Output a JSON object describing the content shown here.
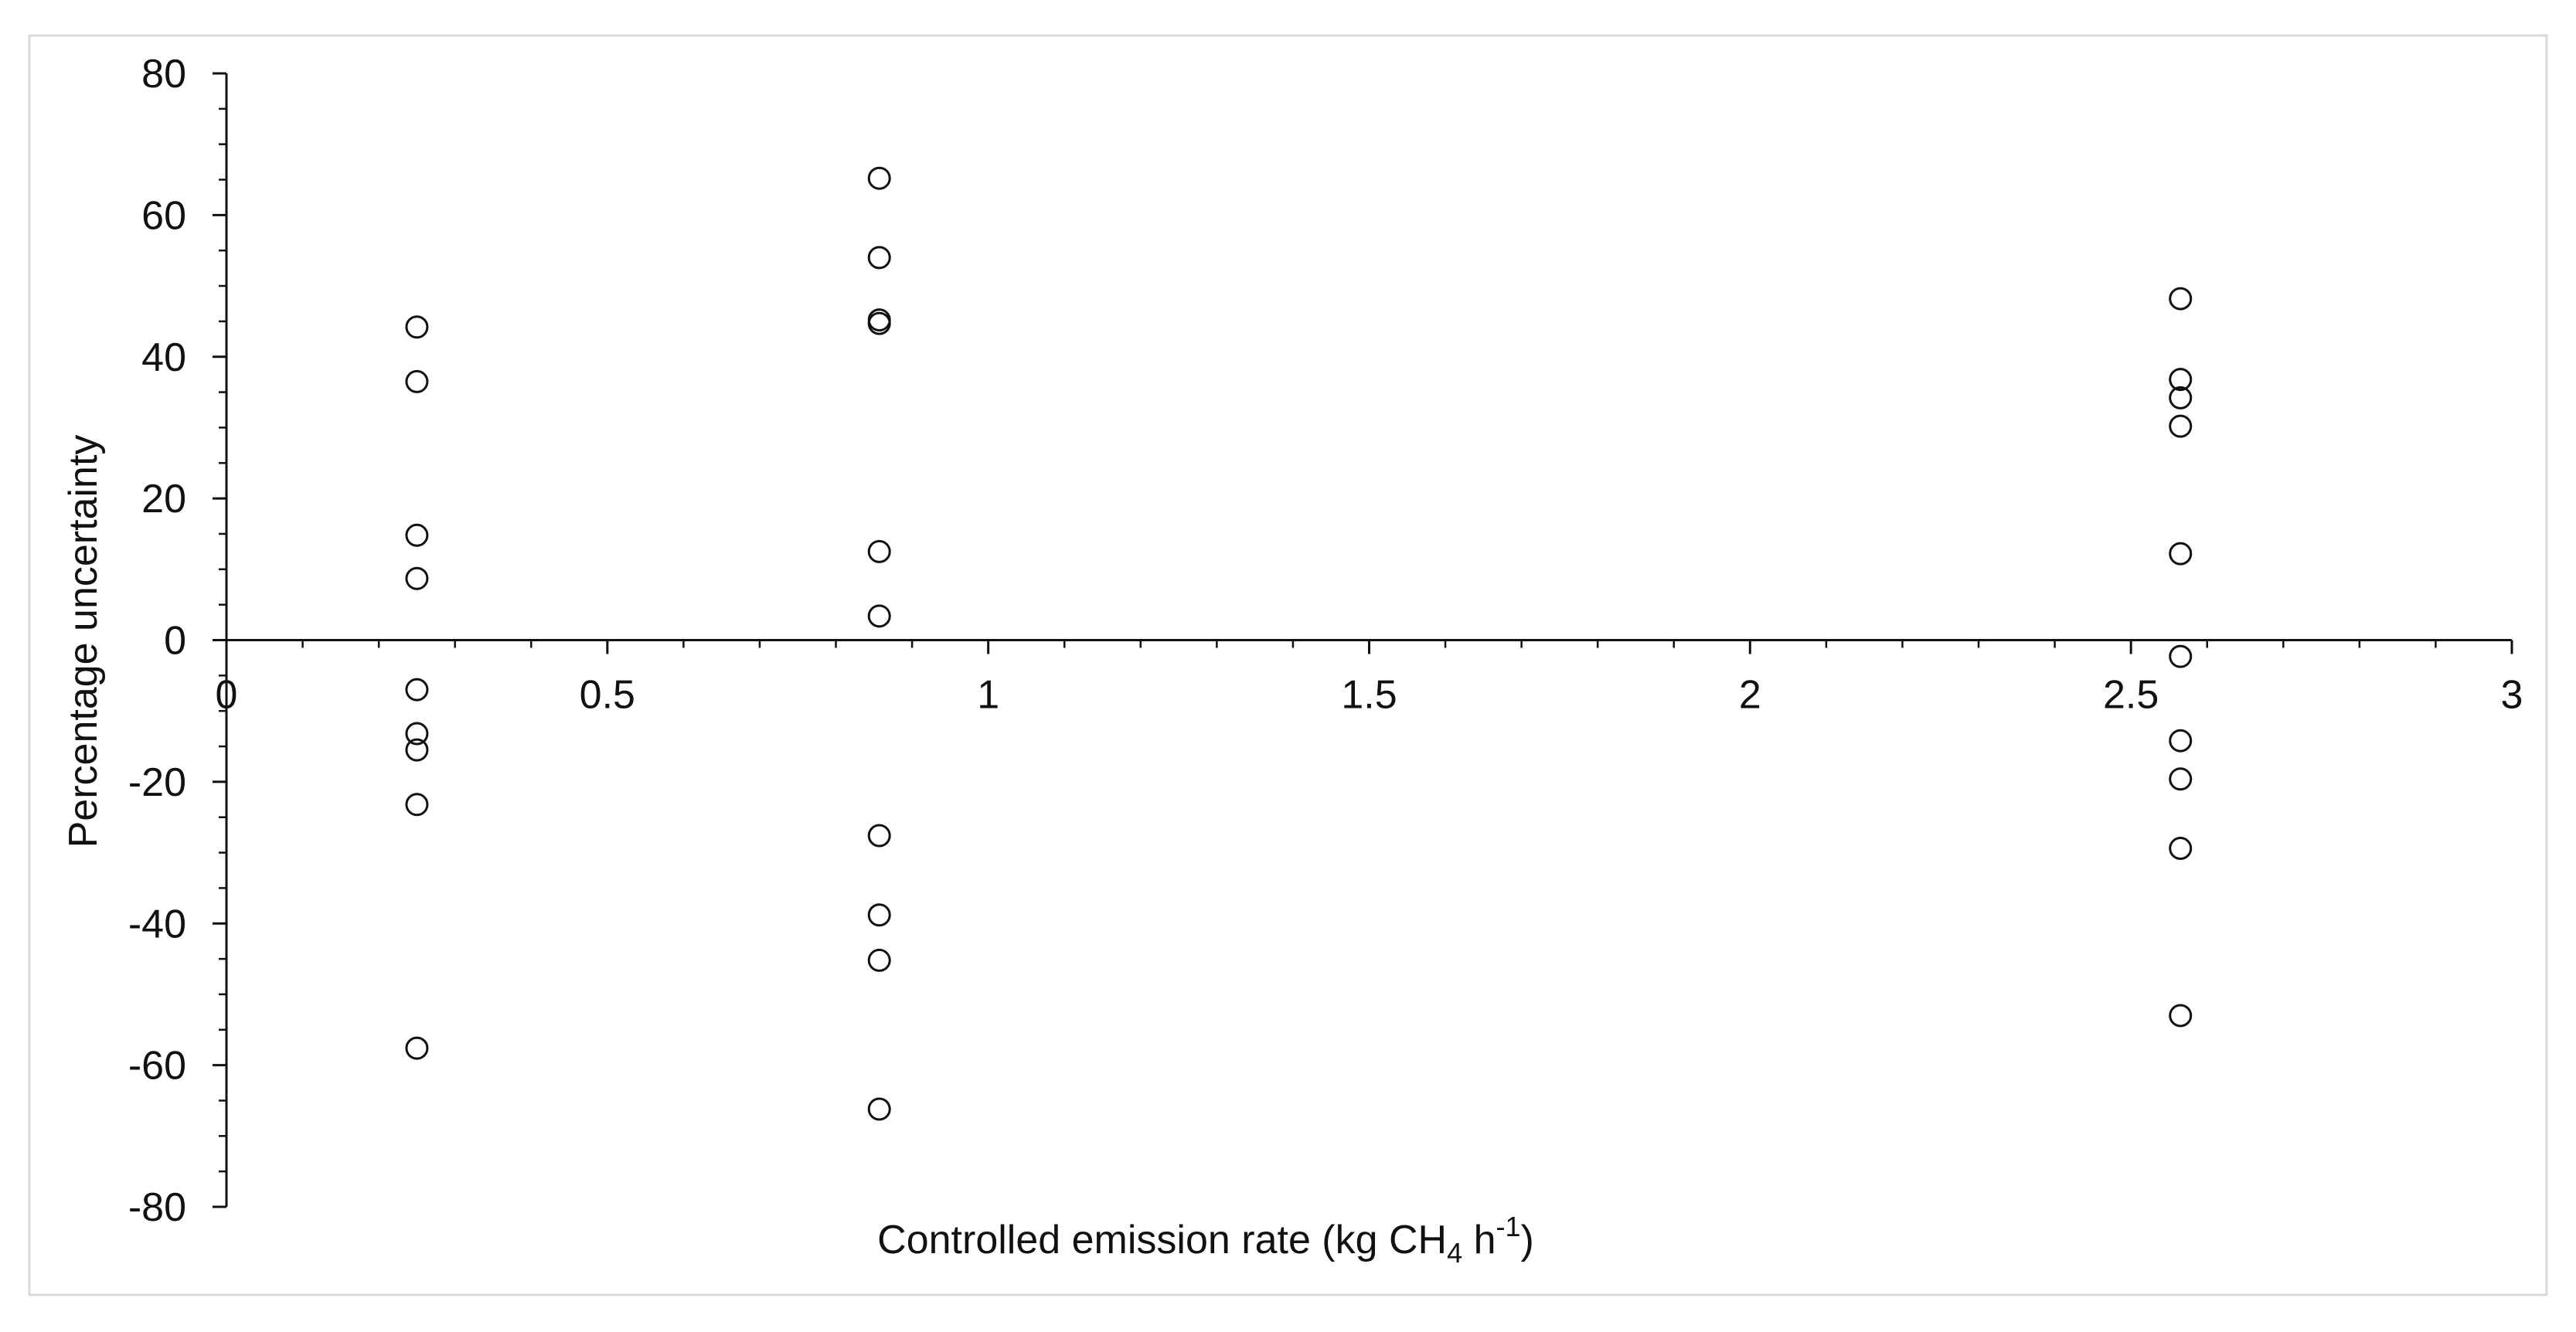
{
  "chart_data": {
    "type": "scatter",
    "title": "",
    "xlabel": {
      "prefix": "Controlled emission rate (kg CH",
      "subscript": "4",
      "middle": " h",
      "superscript": "-1",
      "suffix": ")"
    },
    "ylabel": "Percentage uncertainty",
    "xlim": [
      0,
      3
    ],
    "ylim": [
      -80,
      80
    ],
    "x_ticks": [
      0,
      0.5,
      1,
      1.5,
      2,
      2.5,
      3
    ],
    "x_tick_labels": [
      "0",
      "0.5",
      "1",
      "1.5",
      "2",
      "2.5",
      "3"
    ],
    "y_ticks": [
      -80,
      -60,
      -40,
      -20,
      0,
      20,
      40,
      60,
      80
    ],
    "y_tick_labels": [
      "-80",
      "-60",
      "-40",
      "-20",
      "0",
      "20",
      "40",
      "60",
      "80"
    ],
    "x_minor_step": 0.1,
    "y_minor_step": 5,
    "grid": false,
    "legend": "none",
    "marker": "open-circle",
    "colors": {
      "marker_stroke": "#111111",
      "axis": "#111111",
      "frame": "#d9d9d9"
    },
    "series": [
      {
        "points": [
          {
            "x": 0.25,
            "y": 44.2
          },
          {
            "x": 0.25,
            "y": 36.5
          },
          {
            "x": 0.25,
            "y": 14.8
          },
          {
            "x": 0.25,
            "y": 8.7
          },
          {
            "x": 0.25,
            "y": -7.0
          },
          {
            "x": 0.25,
            "y": -13.2
          },
          {
            "x": 0.25,
            "y": -15.5
          },
          {
            "x": 0.25,
            "y": -23.2
          },
          {
            "x": 0.25,
            "y": -57.6
          },
          {
            "x": 0.857,
            "y": 65.2
          },
          {
            "x": 0.857,
            "y": 54.0
          },
          {
            "x": 0.857,
            "y": 45.2
          },
          {
            "x": 0.857,
            "y": 44.7
          },
          {
            "x": 0.857,
            "y": 12.5
          },
          {
            "x": 0.857,
            "y": 3.4
          },
          {
            "x": 0.857,
            "y": -27.6
          },
          {
            "x": 0.857,
            "y": -38.8
          },
          {
            "x": 0.857,
            "y": -45.2
          },
          {
            "x": 0.857,
            "y": -66.2
          },
          {
            "x": 2.565,
            "y": 48.2
          },
          {
            "x": 2.565,
            "y": 36.8
          },
          {
            "x": 2.565,
            "y": 34.2
          },
          {
            "x": 2.565,
            "y": 30.2
          },
          {
            "x": 2.565,
            "y": 12.2
          },
          {
            "x": 2.565,
            "y": -2.3
          },
          {
            "x": 2.565,
            "y": -14.2
          },
          {
            "x": 2.565,
            "y": -19.6
          },
          {
            "x": 2.565,
            "y": -29.4
          },
          {
            "x": 2.565,
            "y": -53.0
          }
        ]
      }
    ]
  }
}
